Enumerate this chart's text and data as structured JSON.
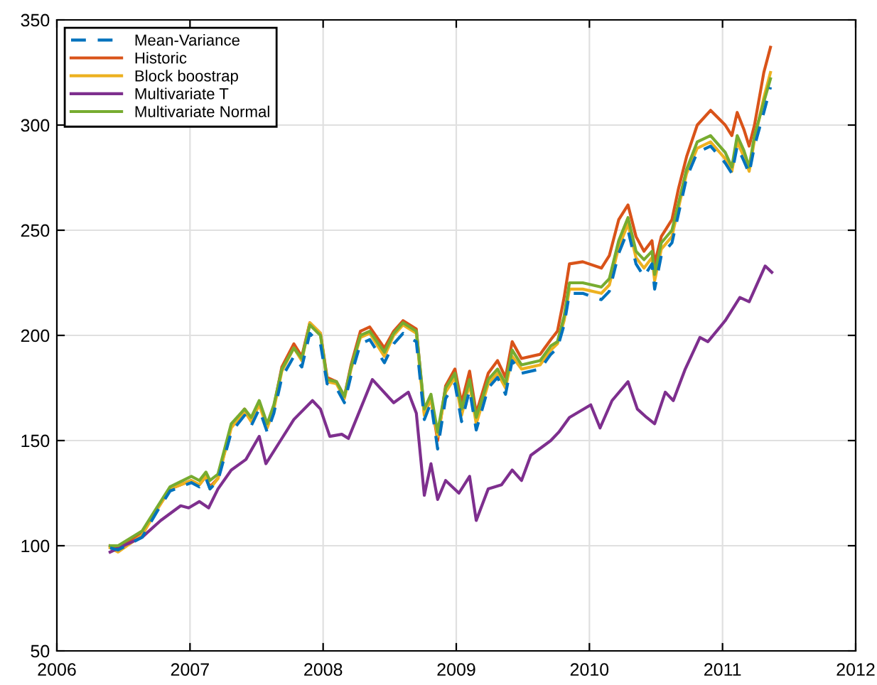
{
  "chart_data": {
    "type": "line",
    "x": [
      2006.4,
      2006.46,
      2006.64,
      2006.75,
      2006.85,
      2007.01,
      2007.07,
      2007.12,
      2007.15,
      2007.21,
      2007.31,
      2007.41,
      2007.46,
      2007.52,
      2007.58,
      2007.63,
      2007.69,
      2007.78,
      2007.84,
      2007.9,
      2007.98,
      2008.03,
      2008.1,
      2008.16,
      2008.21,
      2008.28,
      2008.35,
      2008.46,
      2008.53,
      2008.6,
      2008.7,
      2008.76,
      2008.81,
      2008.86,
      2008.92,
      2008.99,
      2009.04,
      2009.1,
      2009.15,
      2009.24,
      2009.31,
      2009.37,
      2009.42,
      2009.49,
      2009.63,
      2009.71,
      2009.76,
      2009.81,
      2009.85,
      2009.95,
      2010.09,
      2010.15,
      2010.22,
      2010.29,
      2010.35,
      2010.41,
      2010.47,
      2010.49,
      2010.54,
      2010.62,
      2010.67,
      2010.73,
      2010.81,
      2010.91,
      2011.02,
      2011.07,
      2011.11,
      2011.16,
      2011.2,
      2011.24,
      2011.31,
      2011.36
    ],
    "series": [
      {
        "name": "Mean-Variance",
        "color": "#0072bd",
        "line_style": "dashed",
        "values": [
          99,
          98,
          104,
          116,
          126,
          130,
          128,
          132,
          127,
          131,
          154,
          162,
          157,
          165,
          154,
          163,
          180,
          190,
          185,
          201,
          196,
          177,
          175,
          168,
          181,
          196,
          198,
          187,
          196,
          201,
          197,
          160,
          168,
          146,
          170,
          177,
          159,
          174,
          155,
          175,
          180,
          172,
          188,
          182,
          184,
          191,
          194,
          205,
          220,
          220,
          217,
          221,
          239,
          250,
          234,
          228,
          234,
          222,
          238,
          244,
          258,
          275,
          287,
          290,
          282,
          277,
          290,
          283,
          277,
          290,
          306,
          318
        ]
      },
      {
        "name": "Historic",
        "color": "#d95319",
        "values": [
          100,
          99,
          106,
          117,
          127,
          131,
          129,
          133,
          128,
          132,
          157,
          165,
          160,
          168,
          157,
          166,
          185,
          196,
          190,
          206,
          201,
          180,
          178,
          171,
          186,
          202,
          204,
          194,
          202,
          207,
          203,
          163,
          170,
          150,
          176,
          184,
          168,
          183,
          163,
          182,
          188,
          180,
          197,
          189,
          191,
          198,
          202,
          218,
          234,
          235,
          232,
          238,
          255,
          262,
          247,
          240,
          245,
          234,
          247,
          255,
          270,
          285,
          300,
          307,
          300,
          295,
          306,
          298,
          290,
          300,
          325,
          337
        ]
      },
      {
        "name": "Block boostrap",
        "color": "#edb120",
        "values": [
          99,
          97,
          105,
          117,
          127,
          131,
          129,
          133,
          127,
          132,
          156,
          164,
          159,
          167,
          156,
          165,
          183,
          194,
          188,
          206,
          201,
          178,
          177,
          170,
          184,
          199,
          201,
          190,
          200,
          205,
          201,
          162,
          170,
          152,
          173,
          180,
          162,
          177,
          158,
          177,
          182,
          175,
          190,
          184,
          186,
          193,
          196,
          207,
          222,
          222,
          220,
          224,
          242,
          253,
          237,
          232,
          237,
          226,
          241,
          247,
          261,
          277,
          289,
          292,
          284,
          278,
          292,
          285,
          278,
          293,
          313,
          325
        ]
      },
      {
        "name": "Multivariate T",
        "color": "#7e2f8e",
        "x": [
          2006.4,
          2006.5,
          2006.64,
          2006.78,
          2006.93,
          2006.99,
          2007.07,
          2007.14,
          2007.21,
          2007.31,
          2007.42,
          2007.52,
          2007.57,
          2007.68,
          2007.78,
          2007.92,
          2007.98,
          2008.05,
          2008.14,
          2008.19,
          2008.28,
          2008.37,
          2008.53,
          2008.64,
          2008.7,
          2008.76,
          2008.81,
          2008.86,
          2008.92,
          2009.02,
          2009.1,
          2009.15,
          2009.24,
          2009.34,
          2009.42,
          2009.49,
          2009.56,
          2009.71,
          2009.77,
          2009.85,
          2010.01,
          2010.08,
          2010.17,
          2010.29,
          2010.36,
          2010.43,
          2010.49,
          2010.57,
          2010.63,
          2010.72,
          2010.83,
          2010.89,
          2011.02,
          2011.13,
          2011.2,
          2011.32,
          2011.37
        ],
        "values": [
          97,
          100,
          104,
          112,
          119,
          118,
          121,
          118,
          127,
          136,
          141,
          152,
          139,
          150,
          160,
          169,
          165,
          152,
          153,
          151,
          165,
          179,
          168,
          173,
          163,
          124,
          139,
          122,
          131,
          125,
          133,
          112,
          127,
          129,
          136,
          131,
          143,
          150,
          154,
          161,
          167,
          156,
          169,
          178,
          165,
          161,
          158,
          173,
          169,
          184,
          199,
          197,
          207,
          218,
          216,
          233,
          230
        ]
      },
      {
        "name": "Multivariate Normal",
        "color": "#77ac30",
        "values": [
          100,
          100,
          107,
          118,
          128,
          133,
          131,
          135,
          131,
          134,
          158,
          165,
          161,
          169,
          158,
          167,
          184,
          194,
          189,
          205,
          200,
          179,
          178,
          171,
          185,
          200,
          202,
          192,
          201,
          206,
          202,
          165,
          172,
          154,
          175,
          182,
          165,
          179,
          161,
          179,
          184,
          177,
          193,
          186,
          188,
          195,
          197,
          209,
          225,
          225,
          223,
          227,
          245,
          256,
          240,
          236,
          240,
          229,
          244,
          250,
          263,
          279,
          292,
          295,
          287,
          280,
          295,
          288,
          280,
          295,
          311,
          322
        ]
      }
    ],
    "xlim": [
      2006,
      2012
    ],
    "xticks": [
      2006,
      2007,
      2008,
      2009,
      2010,
      2011,
      2012
    ],
    "ylim": [
      50,
      350
    ],
    "yticks": [
      50,
      100,
      150,
      200,
      250,
      300,
      350
    ],
    "grid": true,
    "legend": "top left",
    "line_style": "solid"
  }
}
